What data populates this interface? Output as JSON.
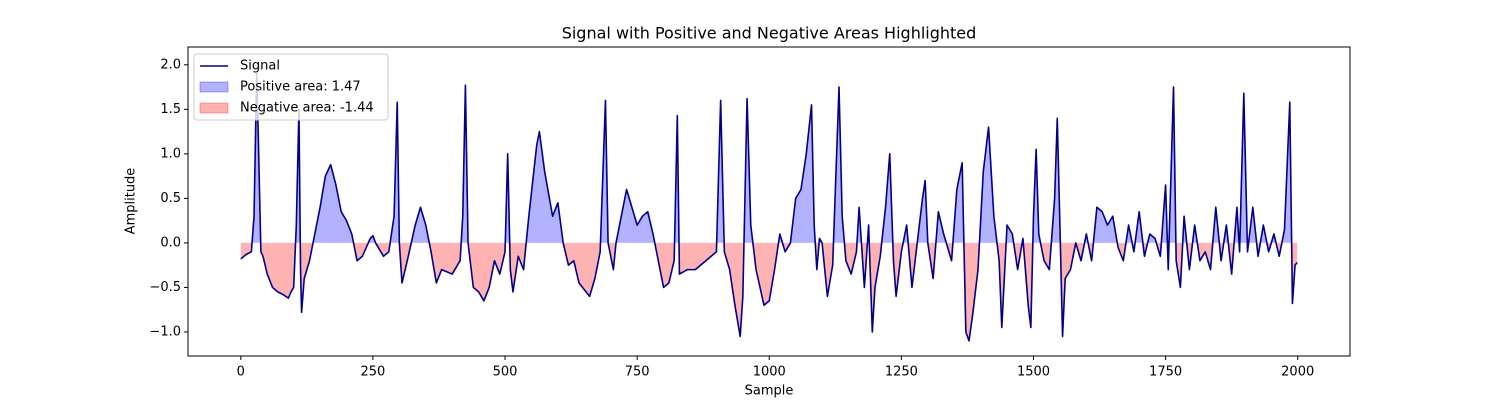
{
  "chart_data": {
    "type": "line",
    "title": "Signal with Positive and Negative Areas Highlighted",
    "x_label": "Sample",
    "y_label": "Amplitude",
    "x": [
      0,
      10,
      20,
      25,
      30,
      33,
      38,
      42,
      50,
      60,
      70,
      80,
      90,
      95,
      100,
      105,
      110,
      113,
      115,
      120,
      130,
      140,
      150,
      160,
      170,
      180,
      190,
      200,
      210,
      220,
      230,
      245,
      250,
      255,
      270,
      280,
      290,
      296,
      300,
      305,
      315,
      330,
      340,
      350,
      360,
      370,
      380,
      400,
      415,
      420,
      425,
      430,
      440,
      450,
      460,
      470,
      480,
      490,
      500,
      505,
      510,
      515,
      525,
      535,
      545,
      560,
      565,
      575,
      590,
      600,
      610,
      620,
      630,
      640,
      660,
      670,
      680,
      690,
      695,
      705,
      710,
      720,
      730,
      740,
      750,
      760,
      770,
      780,
      790,
      800,
      810,
      820,
      826,
      830,
      845,
      860,
      880,
      900,
      908,
      915,
      925,
      935,
      945,
      950,
      958,
      965,
      975,
      990,
      1000,
      1010,
      1020,
      1030,
      1040,
      1050,
      1060,
      1070,
      1080,
      1085,
      1090,
      1095,
      1100,
      1110,
      1120,
      1132,
      1138,
      1145,
      1155,
      1165,
      1170,
      1180,
      1188,
      1195,
      1200,
      1210,
      1220,
      1228,
      1235,
      1240,
      1250,
      1260,
      1270,
      1280,
      1290,
      1295,
      1300,
      1310,
      1320,
      1330,
      1345,
      1355,
      1365,
      1372,
      1378,
      1385,
      1395,
      1405,
      1415,
      1425,
      1435,
      1440,
      1450,
      1460,
      1470,
      1480,
      1490,
      1495,
      1500,
      1505,
      1510,
      1520,
      1530,
      1540,
      1545,
      1550,
      1555,
      1560,
      1570,
      1580,
      1590,
      1600,
      1610,
      1620,
      1630,
      1640,
      1650,
      1660,
      1670,
      1680,
      1690,
      1700,
      1710,
      1720,
      1730,
      1740,
      1750,
      1755,
      1765,
      1770,
      1778,
      1785,
      1795,
      1805,
      1815,
      1825,
      1835,
      1845,
      1855,
      1865,
      1875,
      1885,
      1890,
      1898,
      1905,
      1915,
      1925,
      1935,
      1945,
      1955,
      1965,
      1975,
      1985,
      1990,
      1995,
      1999
    ],
    "series": [
      {
        "name": "Signal",
        "color": "#00008b",
        "values": [
          -0.18,
          -0.13,
          -0.1,
          0.3,
          1.9,
          1.2,
          -0.1,
          -0.15,
          -0.35,
          -0.5,
          -0.55,
          -0.58,
          -0.62,
          -0.55,
          -0.5,
          0.2,
          1.5,
          -0.3,
          -0.78,
          -0.4,
          -0.2,
          0.1,
          0.4,
          0.75,
          0.88,
          0.65,
          0.35,
          0.25,
          0.1,
          -0.2,
          -0.15,
          0.05,
          0.08,
          0.0,
          -0.15,
          -0.1,
          0.3,
          1.58,
          0.0,
          -0.45,
          -0.2,
          0.2,
          0.4,
          0.2,
          -0.1,
          -0.45,
          -0.3,
          -0.35,
          -0.2,
          0.3,
          1.77,
          0.0,
          -0.5,
          -0.55,
          -0.65,
          -0.5,
          -0.2,
          -0.35,
          -0.1,
          1.0,
          -0.3,
          -0.55,
          -0.15,
          -0.3,
          0.3,
          1.1,
          1.25,
          0.8,
          0.3,
          0.45,
          0.0,
          -0.25,
          -0.2,
          -0.45,
          -0.6,
          -0.4,
          -0.1,
          1.6,
          0.0,
          -0.3,
          0.0,
          0.3,
          0.6,
          0.4,
          0.2,
          0.3,
          0.35,
          0.1,
          -0.2,
          -0.5,
          -0.45,
          -0.2,
          1.43,
          -0.35,
          -0.3,
          -0.3,
          -0.2,
          -0.1,
          1.6,
          -0.1,
          -0.3,
          -0.7,
          -1.05,
          -0.6,
          1.62,
          0.2,
          -0.3,
          -0.7,
          -0.65,
          -0.3,
          0.1,
          -0.1,
          0.0,
          0.5,
          0.6,
          1.0,
          1.55,
          0.2,
          -0.3,
          0.05,
          0.0,
          -0.6,
          -0.25,
          1.75,
          0.3,
          -0.2,
          -0.35,
          -0.1,
          0.4,
          -0.5,
          0.2,
          -1.0,
          -0.5,
          -0.15,
          0.4,
          1.0,
          -0.2,
          -0.6,
          -0.1,
          0.2,
          -0.5,
          0.0,
          0.5,
          0.7,
          0.0,
          -0.4,
          0.35,
          0.1,
          -0.2,
          0.6,
          0.9,
          -1.0,
          -1.1,
          -0.8,
          -0.3,
          0.8,
          1.3,
          0.3,
          -0.2,
          -0.95,
          0.2,
          0.1,
          -0.3,
          0.05,
          -0.7,
          -0.95,
          0.3,
          1.05,
          0.1,
          -0.2,
          -0.3,
          0.5,
          1.4,
          0.2,
          -1.05,
          -0.4,
          -0.3,
          0.0,
          -0.2,
          0.1,
          -0.2,
          0.4,
          0.35,
          0.2,
          0.3,
          -0.05,
          -0.2,
          0.2,
          -0.1,
          0.35,
          -0.15,
          0.1,
          0.05,
          -0.15,
          0.65,
          -0.3,
          1.75,
          -0.2,
          -0.5,
          0.3,
          -0.3,
          0.2,
          -0.2,
          -0.1,
          -0.3,
          0.4,
          -0.2,
          0.2,
          -0.35,
          0.4,
          -0.1,
          1.68,
          -0.1,
          0.4,
          -0.15,
          0.2,
          -0.1,
          0.1,
          -0.15,
          0.15,
          1.58,
          -0.68,
          -0.25,
          -0.22
        ]
      }
    ],
    "fills": [
      {
        "name": "Positive area: 1.47",
        "color": "blue",
        "alpha": 0.3,
        "side": "above"
      },
      {
        "name": "Negative area: -1.44",
        "color": "red",
        "alpha": 0.3,
        "side": "below"
      }
    ],
    "xlim": [
      -99.95,
      2098.95
    ],
    "xticks": [
      0,
      250,
      500,
      750,
      1000,
      1250,
      1500,
      1750,
      2000
    ],
    "ylim": [
      -1.27,
      2.2
    ],
    "yticks": [
      {
        "value": -1.0,
        "label": "−1.0"
      },
      {
        "value": -0.5,
        "label": "−0.5"
      },
      {
        "value": 0,
        "label": "0.0"
      },
      0.5,
      {
        "value": 1,
        "label": "1.0"
      },
      1.5,
      {
        "value": 2,
        "label": "2.0"
      }
    ],
    "legend": "upper left"
  }
}
